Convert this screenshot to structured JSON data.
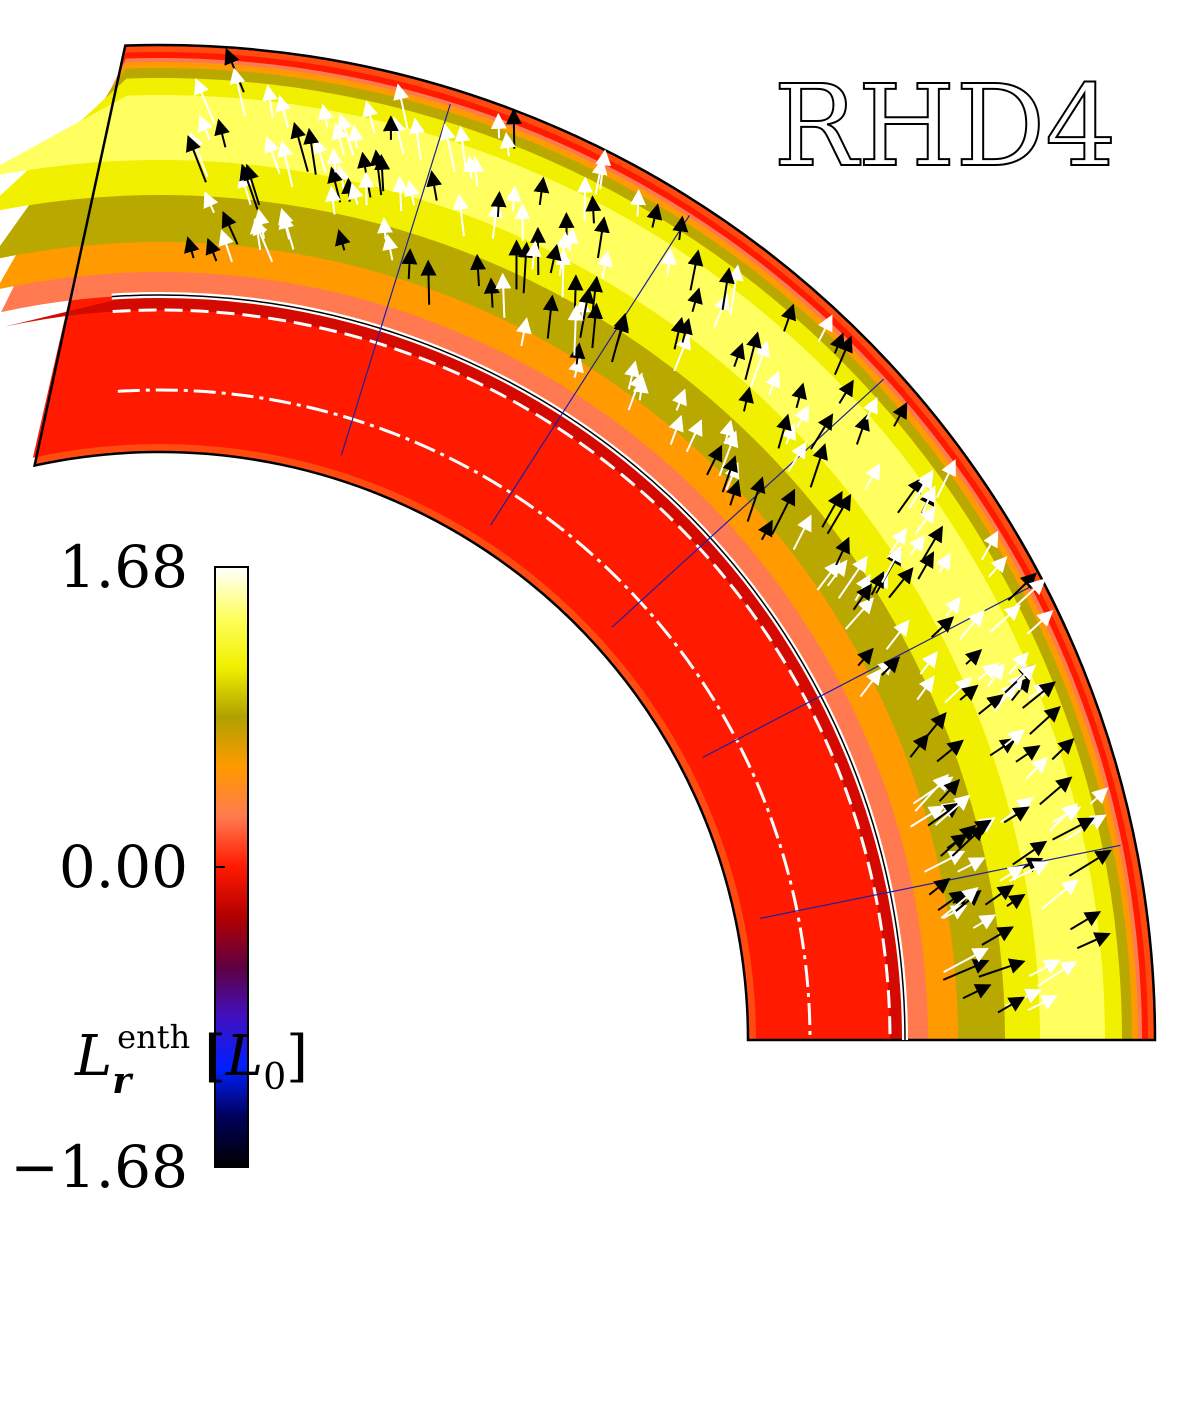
{
  "chart_data": {
    "type": "contour",
    "title": "RHD4",
    "colorbar": {
      "lim": [
        -1.68,
        1.68
      ],
      "ticks": [
        {
          "value": 1.68,
          "label": "1.68"
        },
        {
          "value": 0,
          "label": "0.00"
        },
        {
          "value": -1.68,
          "label": "−1.68"
        }
      ],
      "colors": [
        "#000000",
        "#00005a",
        "#0020ff",
        "#4010c0",
        "#600040",
        "#b00000",
        "#ff1a00",
        "#ff7a50",
        "#ff9a00",
        "#b0a000",
        "#f0f000",
        "#ffff60",
        "#ffffff"
      ],
      "label": {
        "quantity": "L",
        "sub": "r",
        "sup": "enth",
        "unit_open": "[",
        "unit": "L",
        "unit_sub": "0",
        "unit_close": "]"
      }
    }
  }
}
